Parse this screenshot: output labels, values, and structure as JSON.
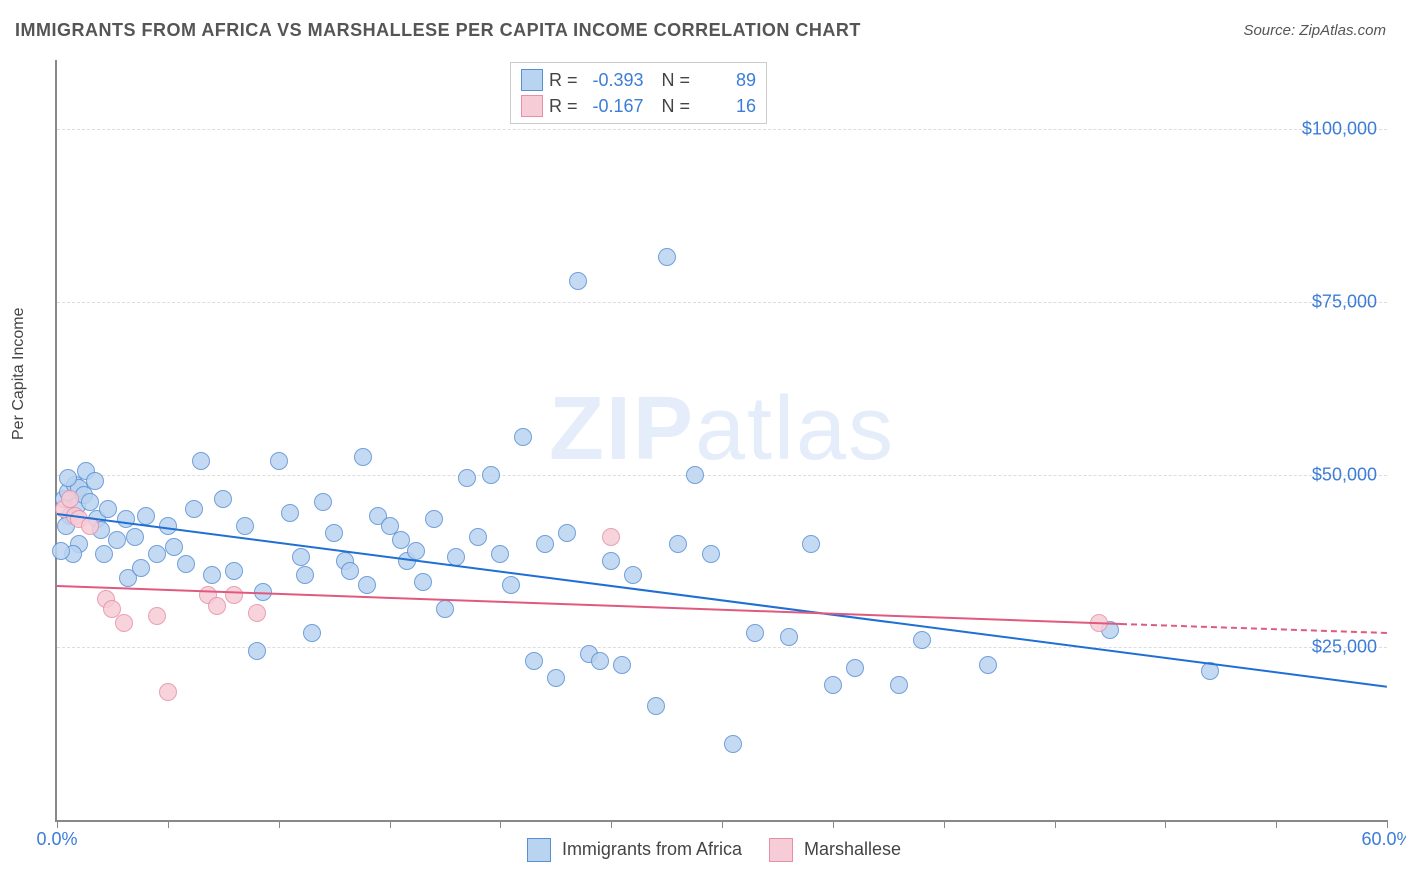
{
  "title": "IMMIGRANTS FROM AFRICA VS MARSHALLESE PER CAPITA INCOME CORRELATION CHART",
  "source": "Source: ZipAtlas.com",
  "ylabel": "Per Capita Income",
  "watermark_bold": "ZIP",
  "watermark_light": "atlas",
  "chart": {
    "type": "scatter",
    "xlim": [
      0,
      60
    ],
    "ylim": [
      0,
      110000
    ],
    "xticks": [
      0,
      5,
      10,
      15,
      20,
      25,
      30,
      35,
      40,
      45,
      50,
      55,
      60
    ],
    "xtick_labels": {
      "0": "0.0%",
      "60": "60.0%"
    },
    "yticks": [
      25000,
      50000,
      75000,
      100000
    ],
    "ytick_labels": {
      "25000": "$25,000",
      "50000": "$50,000",
      "75000": "$75,000",
      "100000": "$100,000"
    },
    "grid_color": "#dddddd",
    "axis_color": "#888888",
    "label_color": "#3b7dd8",
    "background": "#ffffff",
    "point_radius": 9,
    "point_border_width": 1
  },
  "series": [
    {
      "name": "Immigrants from Africa",
      "fill": "#b9d4f0",
      "stroke": "#5a8fd4",
      "line_color": "#1f6fd4",
      "R": "-0.393",
      "N": "89",
      "trend": {
        "x1": 0,
        "y1": 44500,
        "x2": 60,
        "y2": 19500
      },
      "points": [
        [
          0.3,
          46500
        ],
        [
          0.5,
          47500
        ],
        [
          0.6,
          44000
        ],
        [
          0.8,
          48500
        ],
        [
          0.9,
          45500
        ],
        [
          1.0,
          48000
        ],
        [
          1.2,
          47000
        ],
        [
          1.5,
          46000
        ],
        [
          1.8,
          43500
        ],
        [
          1.0,
          40000
        ],
        [
          0.7,
          38500
        ],
        [
          0.4,
          42500
        ],
        [
          0.2,
          39000
        ],
        [
          2.0,
          42000
        ],
        [
          2.3,
          45000
        ],
        [
          2.7,
          40500
        ],
        [
          3.1,
          43500
        ],
        [
          3.5,
          41000
        ],
        [
          4.0,
          44000
        ],
        [
          4.5,
          38500
        ],
        [
          3.2,
          35000
        ],
        [
          3.8,
          36500
        ],
        [
          5.0,
          42500
        ],
        [
          5.3,
          39500
        ],
        [
          5.8,
          37000
        ],
        [
          6.2,
          45000
        ],
        [
          6.5,
          52000
        ],
        [
          7.0,
          35500
        ],
        [
          7.5,
          46500
        ],
        [
          8.0,
          36000
        ],
        [
          8.5,
          42500
        ],
        [
          9.0,
          24500
        ],
        [
          9.3,
          33000
        ],
        [
          10.0,
          52000
        ],
        [
          10.5,
          44500
        ],
        [
          11.0,
          38000
        ],
        [
          11.2,
          35500
        ],
        [
          11.5,
          27000
        ],
        [
          12.0,
          46000
        ],
        [
          12.5,
          41500
        ],
        [
          13.0,
          37500
        ],
        [
          13.2,
          36000
        ],
        [
          13.8,
          52500
        ],
        [
          14.0,
          34000
        ],
        [
          14.5,
          44000
        ],
        [
          15.0,
          42500
        ],
        [
          15.5,
          40500
        ],
        [
          15.8,
          37500
        ],
        [
          16.2,
          39000
        ],
        [
          16.5,
          34500
        ],
        [
          17.0,
          43500
        ],
        [
          17.5,
          30500
        ],
        [
          18.0,
          38000
        ],
        [
          18.5,
          49500
        ],
        [
          19.0,
          41000
        ],
        [
          19.6,
          50000
        ],
        [
          20.0,
          38500
        ],
        [
          20.5,
          34000
        ],
        [
          21.0,
          55500
        ],
        [
          21.5,
          23000
        ],
        [
          22.0,
          40000
        ],
        [
          22.5,
          20500
        ],
        [
          23.0,
          41500
        ],
        [
          23.5,
          78000
        ],
        [
          24.0,
          24000
        ],
        [
          24.5,
          23000
        ],
        [
          25.0,
          37500
        ],
        [
          25.5,
          22500
        ],
        [
          26.0,
          35500
        ],
        [
          27.0,
          16500
        ],
        [
          27.5,
          81500
        ],
        [
          28.0,
          40000
        ],
        [
          28.8,
          50000
        ],
        [
          29.5,
          38500
        ],
        [
          30.5,
          11000
        ],
        [
          31.5,
          27000
        ],
        [
          33.0,
          26500
        ],
        [
          34.0,
          40000
        ],
        [
          35.0,
          19500
        ],
        [
          36.0,
          22000
        ],
        [
          38.0,
          19500
        ],
        [
          39.0,
          26000
        ],
        [
          42.0,
          22500
        ],
        [
          47.5,
          27500
        ],
        [
          52.0,
          21500
        ],
        [
          1.3,
          50500
        ],
        [
          2.1,
          38500
        ],
        [
          0.5,
          49500
        ],
        [
          1.7,
          49000
        ]
      ]
    },
    {
      "name": "Marshallese",
      "fill": "#f6ccd6",
      "stroke": "#e78fa8",
      "line_color": "#e05a7f",
      "R": "-0.167",
      "N": "16",
      "trend": {
        "x1": 0,
        "y1": 34000,
        "x2": 48,
        "y2": 28500,
        "dash_x2": 60,
        "dash_y2": 27200
      },
      "points": [
        [
          0.3,
          45000
        ],
        [
          0.6,
          46500
        ],
        [
          0.8,
          44000
        ],
        [
          1.0,
          43500
        ],
        [
          1.5,
          42500
        ],
        [
          2.2,
          32000
        ],
        [
          2.5,
          30500
        ],
        [
          3.0,
          28500
        ],
        [
          4.5,
          29500
        ],
        [
          5.0,
          18500
        ],
        [
          6.8,
          32500
        ],
        [
          7.2,
          31000
        ],
        [
          8.0,
          32500
        ],
        [
          9.0,
          30000
        ],
        [
          25.0,
          41000
        ],
        [
          47.0,
          28500
        ]
      ]
    }
  ],
  "legend_bottom": [
    {
      "label": "Immigrants from Africa",
      "fill": "#b9d4f0",
      "stroke": "#5a8fd4"
    },
    {
      "label": "Marshallese",
      "fill": "#f6ccd6",
      "stroke": "#e78fa8"
    }
  ]
}
